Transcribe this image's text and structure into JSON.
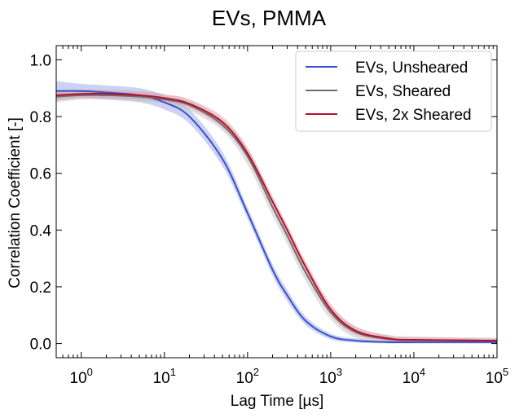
{
  "chart_data": {
    "type": "line",
    "title": "EVs, PMMA",
    "xlabel": "Lag Time [µs]",
    "ylabel": "Correlation Coefficient [-]",
    "xscale": "log",
    "xlim": [
      0.5,
      100000
    ],
    "ylim": [
      -0.05,
      1.05
    ],
    "xticks": [
      {
        "base": "10",
        "exp": "0",
        "value": 1
      },
      {
        "base": "10",
        "exp": "1",
        "value": 10
      },
      {
        "base": "10",
        "exp": "2",
        "value": 100
      },
      {
        "base": "10",
        "exp": "3",
        "value": 1000
      },
      {
        "base": "10",
        "exp": "4",
        "value": 10000
      },
      {
        "base": "10",
        "exp": "5",
        "value": 100000
      }
    ],
    "yticks": [
      {
        "label": "0.0",
        "value": 0.0
      },
      {
        "label": "0.2",
        "value": 0.2
      },
      {
        "label": "0.4",
        "value": 0.4
      },
      {
        "label": "0.6",
        "value": 0.6
      },
      {
        "label": "0.8",
        "value": 0.8
      },
      {
        "label": "1.0",
        "value": 1.0
      }
    ],
    "grid": false,
    "legend_position": "top-right",
    "series": [
      {
        "name": "EVs, Unsheared",
        "color": "#3a50cc",
        "band_color": "#8f9de3",
        "x": [
          0.5,
          1,
          2,
          5,
          10,
          20,
          50,
          100,
          200,
          300,
          500,
          1000,
          2000,
          5000,
          10000,
          100000
        ],
        "y": [
          0.89,
          0.89,
          0.885,
          0.875,
          0.85,
          0.8,
          0.65,
          0.46,
          0.26,
          0.17,
          0.08,
          0.025,
          0.01,
          0.005,
          0.005,
          0.005
        ],
        "y_low": [
          0.855,
          0.865,
          0.86,
          0.85,
          0.825,
          0.775,
          0.625,
          0.44,
          0.24,
          0.15,
          0.065,
          0.015,
          0.003,
          0.0,
          0.0,
          0.0
        ],
        "y_high": [
          0.925,
          0.915,
          0.91,
          0.9,
          0.875,
          0.825,
          0.675,
          0.48,
          0.28,
          0.19,
          0.095,
          0.035,
          0.018,
          0.01,
          0.01,
          0.01
        ]
      },
      {
        "name": "EVs, Sheared",
        "color": "#6e6e6e",
        "band_color": "#bdbdbd",
        "x": [
          0.5,
          1,
          2,
          5,
          10,
          20,
          50,
          100,
          200,
          300,
          500,
          1000,
          2000,
          5000,
          10000,
          100000
        ],
        "y": [
          0.87,
          0.875,
          0.875,
          0.87,
          0.86,
          0.84,
          0.77,
          0.66,
          0.48,
          0.38,
          0.25,
          0.11,
          0.04,
          0.015,
          0.012,
          0.01
        ],
        "y_low": [
          0.85,
          0.86,
          0.86,
          0.855,
          0.845,
          0.82,
          0.75,
          0.63,
          0.45,
          0.35,
          0.22,
          0.085,
          0.02,
          0.005,
          0.003,
          0.0
        ],
        "y_high": [
          0.895,
          0.895,
          0.89,
          0.885,
          0.875,
          0.86,
          0.79,
          0.69,
          0.51,
          0.41,
          0.28,
          0.135,
          0.06,
          0.03,
          0.025,
          0.02
        ]
      },
      {
        "name": "EVs, 2x Sheared",
        "color": "#b5102c",
        "band_color": "#e89aa6",
        "x": [
          0.5,
          1,
          2,
          5,
          10,
          20,
          50,
          100,
          200,
          300,
          500,
          1000,
          2000,
          5000,
          10000,
          100000
        ],
        "y": [
          0.875,
          0.88,
          0.88,
          0.875,
          0.865,
          0.845,
          0.78,
          0.67,
          0.5,
          0.4,
          0.27,
          0.12,
          0.045,
          0.018,
          0.013,
          0.01
        ],
        "y_low": [
          0.86,
          0.865,
          0.865,
          0.86,
          0.85,
          0.83,
          0.76,
          0.65,
          0.48,
          0.38,
          0.25,
          0.1,
          0.03,
          0.008,
          0.005,
          0.002
        ],
        "y_high": [
          0.89,
          0.895,
          0.895,
          0.89,
          0.88,
          0.86,
          0.8,
          0.69,
          0.52,
          0.42,
          0.29,
          0.14,
          0.06,
          0.028,
          0.022,
          0.018
        ]
      }
    ]
  }
}
